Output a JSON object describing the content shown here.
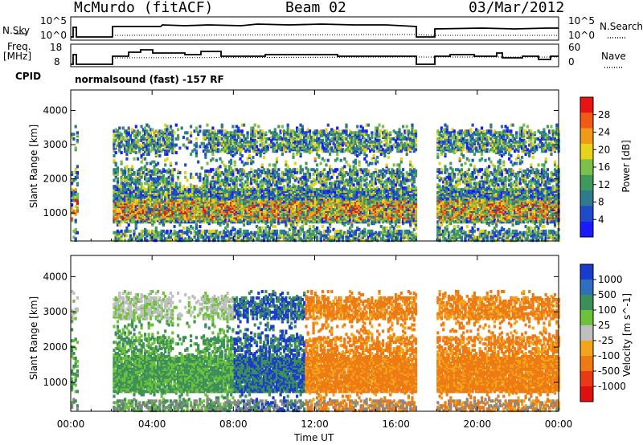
{
  "header": {
    "station": "McMurdo (fitACF)",
    "beam": "Beam 02",
    "date": "03/Mar/2012"
  },
  "strips": {
    "nsky_label": "N.Sky",
    "nsky_ticks": [
      "10^5",
      "10^0"
    ],
    "nsearch_label": "N.Search",
    "nsearch_ticks": [
      "10^5",
      "10^0"
    ],
    "freq_label_line1": "Freq.",
    "freq_label_line2": "[MHz]",
    "freq_ticks": [
      "18",
      "8"
    ],
    "nave_label": "Nave",
    "nave_ticks": [
      "60",
      "0"
    ],
    "cpid_label": "CPID",
    "cpid_text": "normalsound (fast) -157 RF"
  },
  "colors": {
    "power_scale": [
      "#1a1aff",
      "#1f4bc8",
      "#2f7a8c",
      "#3e9a5c",
      "#7ac04a",
      "#e8d21a",
      "#f09a1a",
      "#f05a14",
      "#e81414"
    ],
    "velocity_scale": [
      "#1a3ccc",
      "#2f6fc0",
      "#3d8f5a",
      "#6cc23a",
      "#bfbfbf",
      "#f2a51a",
      "#ee7a14",
      "#e83a14",
      "#e01010"
    ],
    "ground_scatter": "#888888"
  },
  "chart_data": [
    {
      "type": "heatmap",
      "title": "",
      "xlabel": "",
      "ylabel": "Slant Range [km]",
      "x_ticks": [
        "00:00",
        "04:00",
        "08:00",
        "12:00",
        "16:00",
        "20:00",
        "00:00"
      ],
      "xlim": [
        0,
        24
      ],
      "y_ticks": [
        "1000",
        "2000",
        "3000",
        "4000"
      ],
      "ylim": [
        180,
        4600
      ],
      "colorbar": {
        "label": "Power [dB]",
        "ticks": [
          "4",
          "8",
          "12",
          "16",
          "20",
          "24",
          "28"
        ],
        "range": [
          0,
          32
        ]
      },
      "data_gaps_UT_hours": [
        [
          0.3,
          2.0
        ],
        [
          17.0,
          17.95
        ]
      ]
    },
    {
      "type": "heatmap",
      "title": "",
      "xlabel": "Time UT",
      "ylabel": "Slant Range [km]",
      "x_ticks": [
        "00:00",
        "04:00",
        "08:00",
        "12:00",
        "16:00",
        "20:00",
        "00:00"
      ],
      "xlim": [
        0,
        24
      ],
      "y_ticks": [
        "1000",
        "2000",
        "3000",
        "4000"
      ],
      "ylim": [
        180,
        4600
      ],
      "colorbar": {
        "label": "Velocity [m s^-1]",
        "ticks": [
          "1000",
          "500",
          "100",
          "25",
          "-25",
          "-100",
          "-500",
          "-1000"
        ]
      },
      "data_gaps_UT_hours": [
        [
          0.3,
          2.0
        ],
        [
          17.0,
          17.95
        ]
      ]
    }
  ]
}
